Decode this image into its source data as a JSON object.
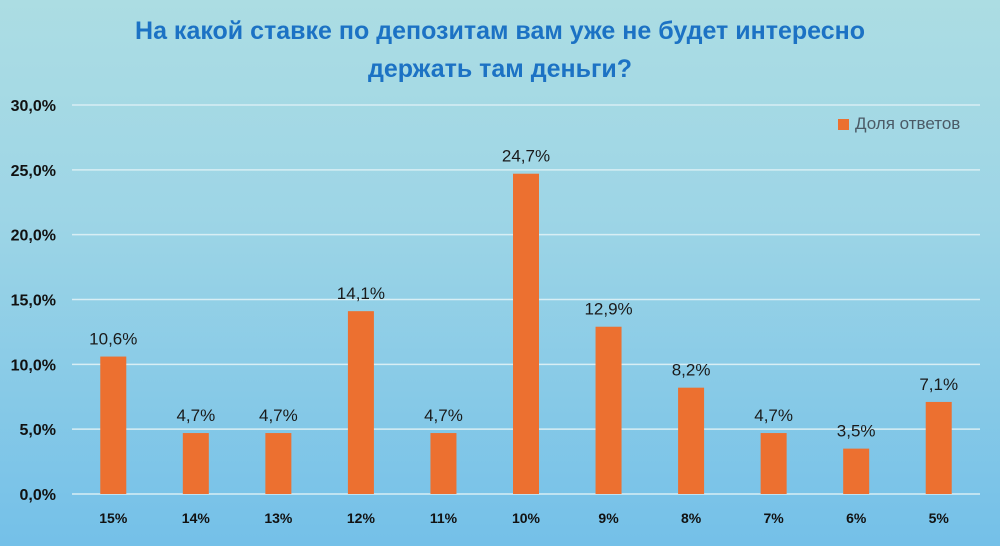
{
  "chart_data": {
    "type": "bar",
    "title_line1": "На какой ставке по депозитам вам уже не будет интересно",
    "title_line2": "держать там деньги?",
    "categories": [
      "15%",
      "14%",
      "13%",
      "12%",
      "11%",
      "10%",
      "9%",
      "8%",
      "7%",
      "6%",
      "5%"
    ],
    "series": [
      {
        "name": "Доля ответов",
        "values": [
          10.6,
          4.7,
          4.7,
          14.1,
          4.7,
          24.7,
          12.9,
          8.2,
          4.7,
          3.5,
          7.1
        ],
        "labels": [
          "10,6%",
          "4,7%",
          "4,7%",
          "14,1%",
          "4,7%",
          "24,7%",
          "12,9%",
          "8,2%",
          "4,7%",
          "3,5%",
          "7,1%"
        ],
        "color": "#ec7030"
      }
    ],
    "yticks": [
      0,
      5,
      10,
      15,
      20,
      25,
      30
    ],
    "ytick_labels": [
      "0,0%",
      "5,0%",
      "10,0%",
      "15,0%",
      "20,0%",
      "25,0%",
      "30,0%"
    ],
    "ylim": [
      0,
      30
    ],
    "grid": true,
    "legend": "top-right",
    "xlabel": "",
    "ylabel": ""
  }
}
